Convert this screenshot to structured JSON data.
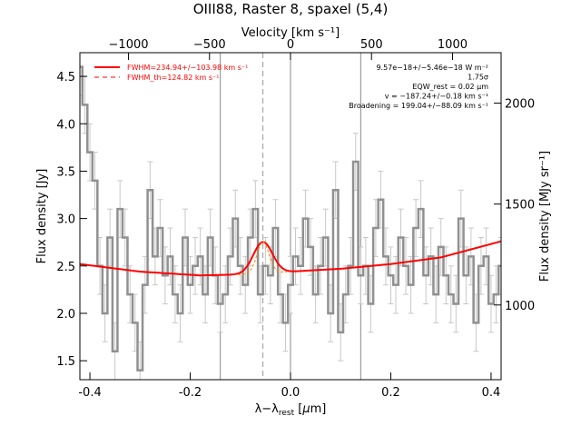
{
  "chart_data": {
    "type": "line",
    "title": "OIII88, Raster 8, spaxel (5,4)",
    "xlabel": "λ−λ_rest [µm]",
    "ylabel": "Flux density [Jy]",
    "top_axis_label": "Velocity [km s⁻¹]",
    "right_axis_label": "Flux density [MJy sr⁻¹]",
    "xlim": [
      -0.42,
      0.42
    ],
    "ylim": [
      1.3,
      4.75
    ],
    "x_ticks": [
      "-0.4",
      "-0.2",
      "0.0",
      "0.2",
      "0.4"
    ],
    "y_ticks": [
      "1.5",
      "2.0",
      "2.5",
      "3.0",
      "3.5",
      "4.0",
      "4.5"
    ],
    "top_ticks": [
      {
        "value": -1000,
        "label": "−1000"
      },
      {
        "value": -500,
        "label": "−500"
      },
      {
        "value": 0,
        "label": "0"
      },
      {
        "value": 500,
        "label": "500"
      },
      {
        "value": 1000,
        "label": "1000"
      }
    ],
    "right_ticks": [
      {
        "value": 1000,
        "label": "1000"
      },
      {
        "value": 1500,
        "label": "1500"
      },
      {
        "value": 2000,
        "label": "2000"
      }
    ],
    "legend": [
      {
        "label": "FWHM=234.94+/−103.98 km s⁻¹",
        "style": "solid",
        "color": "#ff0000"
      },
      {
        "label": "FWHM_th=124.82 km s⁻¹",
        "style": "dashed",
        "color": "#ff0000"
      }
    ],
    "annotations": [
      "9.57e−18+/−5.46e−18 W m⁻²",
      "1.75σ",
      "EQW_rest = 0.02 µm",
      "v = −187.24+/−0.18 km s⁻¹",
      "Broadening = 199.04+/−88.09 km s⁻¹"
    ],
    "vertical_lines": {
      "solid": [
        -0.14,
        0.0,
        0.14
      ],
      "dashed": [
        -0.055
      ]
    },
    "series": [
      {
        "name": "spectrum",
        "color": "#909090",
        "step": true,
        "x": [
          -0.42,
          -0.41,
          -0.4,
          -0.39,
          -0.38,
          -0.37,
          -0.36,
          -0.35,
          -0.34,
          -0.33,
          -0.32,
          -0.31,
          -0.3,
          -0.29,
          -0.28,
          -0.27,
          -0.26,
          -0.25,
          -0.24,
          -0.23,
          -0.22,
          -0.21,
          -0.2,
          -0.19,
          -0.18,
          -0.17,
          -0.16,
          -0.15,
          -0.14,
          -0.13,
          -0.12,
          -0.11,
          -0.1,
          -0.09,
          -0.08,
          -0.07,
          -0.06,
          -0.05,
          -0.04,
          -0.03,
          -0.02,
          -0.01,
          0.0,
          0.01,
          0.02,
          0.03,
          0.04,
          0.05,
          0.06,
          0.07,
          0.08,
          0.09,
          0.1,
          0.11,
          0.12,
          0.13,
          0.14,
          0.15,
          0.16,
          0.17,
          0.18,
          0.19,
          0.2,
          0.21,
          0.22,
          0.23,
          0.24,
          0.25,
          0.26,
          0.27,
          0.28,
          0.29,
          0.3,
          0.31,
          0.32,
          0.33,
          0.34,
          0.35,
          0.36,
          0.37,
          0.38,
          0.39,
          0.4,
          0.41,
          0.42
        ],
        "y": [
          4.6,
          4.2,
          3.7,
          3.4,
          2.5,
          2.0,
          2.8,
          1.6,
          3.1,
          2.8,
          2.2,
          1.9,
          1.4,
          2.3,
          3.3,
          2.6,
          2.9,
          2.4,
          2.6,
          2.2,
          2.0,
          2.8,
          2.3,
          2.5,
          2.6,
          2.2,
          2.8,
          2.4,
          2.1,
          2.2,
          2.6,
          3.0,
          2.5,
          2.3,
          2.8,
          3.1,
          2.2,
          2.5,
          2.4,
          2.9,
          2.2,
          1.9,
          2.3,
          2.6,
          2.5,
          3.0,
          2.7,
          2.2,
          2.5,
          2.8,
          2.0,
          3.3,
          1.8,
          2.2,
          2.5,
          3.6,
          2.4,
          2.5,
          2.1,
          2.9,
          3.2,
          2.6,
          2.4,
          2.3,
          2.8,
          2.5,
          2.3,
          2.9,
          3.1,
          2.4,
          2.6,
          2.2,
          2.7,
          2.4,
          2.2,
          2.1,
          3.0,
          2.4,
          2.6,
          1.9,
          2.5,
          2.6,
          2.1,
          2.2,
          2.5
        ]
      },
      {
        "name": "fit",
        "color": "#ff0000",
        "continuum_points": [
          [
            -0.42,
            2.52
          ],
          [
            -0.3,
            2.44
          ],
          [
            -0.18,
            2.4
          ],
          [
            -0.1,
            2.41
          ],
          [
            0.0,
            2.44
          ],
          [
            0.1,
            2.47
          ],
          [
            0.2,
            2.52
          ],
          [
            0.3,
            2.59
          ],
          [
            0.42,
            2.76
          ]
        ],
        "line_center": -0.055,
        "line_amplitude": 0.33,
        "line_sigma": 0.019
      },
      {
        "name": "thermal width",
        "color": "#ff8000",
        "dashed": true,
        "line_center": -0.055,
        "line_amplitude": 0.33,
        "line_sigma": 0.012
      }
    ]
  }
}
